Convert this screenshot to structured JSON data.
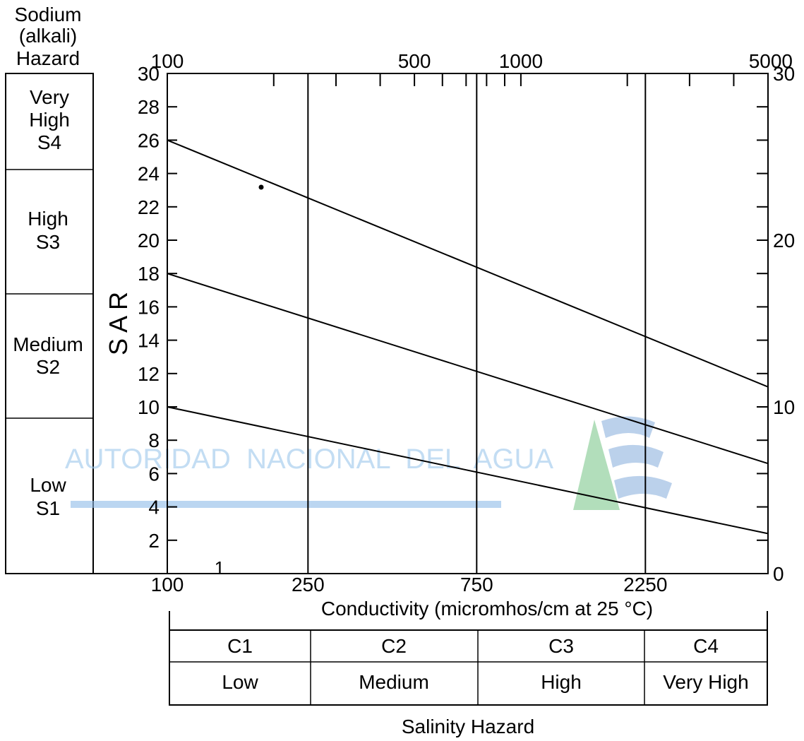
{
  "sodium_panel": {
    "header": [
      "Sodium",
      "(alkali)",
      "Hazard"
    ],
    "classes": [
      {
        "lines": [
          "Very",
          "High",
          "S4"
        ]
      },
      {
        "lines": [
          "High",
          "S3"
        ]
      },
      {
        "lines": [
          "Medium",
          "S2"
        ]
      },
      {
        "lines": [
          "Low",
          "S1"
        ]
      }
    ]
  },
  "watermark": {
    "text": "AUTORIDAD  NACIONAL  DEL  AGUA"
  },
  "stray_mark": "1",
  "salinity_panel": {
    "classes": [
      "C1",
      "C2",
      "C3",
      "C4"
    ],
    "levels": [
      "Low",
      "Medium",
      "High",
      "Very High"
    ],
    "title": "Salinity Hazard"
  },
  "chart_data": {
    "type": "line",
    "title": "",
    "xlabel": "Conductivity (micromhos/cm at 25 °C)",
    "ylabel": "S A R",
    "x_scale": "log",
    "xlim": [
      100,
      5000
    ],
    "ylim": [
      0,
      30
    ],
    "top_axis_ticks": [
      {
        "value": 100,
        "label": "100"
      },
      {
        "value": 500,
        "label": "500"
      },
      {
        "value": 1000,
        "label": "1000"
      },
      {
        "value": 5000,
        "label": "5000"
      }
    ],
    "bottom_axis_ticks": [
      {
        "value": 100,
        "label": "100"
      },
      {
        "value": 250,
        "label": "250"
      },
      {
        "value": 750,
        "label": "750"
      },
      {
        "value": 2250,
        "label": "2250"
      }
    ],
    "left_axis_ticks": [
      "2",
      "4",
      "6",
      "8",
      "10",
      "12",
      "14",
      "16",
      "18",
      "20",
      "22",
      "24",
      "26",
      "28",
      "30"
    ],
    "right_axis_ticks": [
      "0",
      "10",
      "20",
      "30"
    ],
    "class_boundaries_x": [
      250,
      750,
      2250
    ],
    "series": [
      {
        "points": [
          [
            100,
            26
          ],
          [
            5000,
            11.2
          ]
        ]
      },
      {
        "points": [
          [
            100,
            18
          ],
          [
            5000,
            6.6
          ]
        ]
      },
      {
        "points": [
          [
            100,
            10
          ],
          [
            5000,
            2.4
          ]
        ]
      }
    ],
    "grid": false
  }
}
